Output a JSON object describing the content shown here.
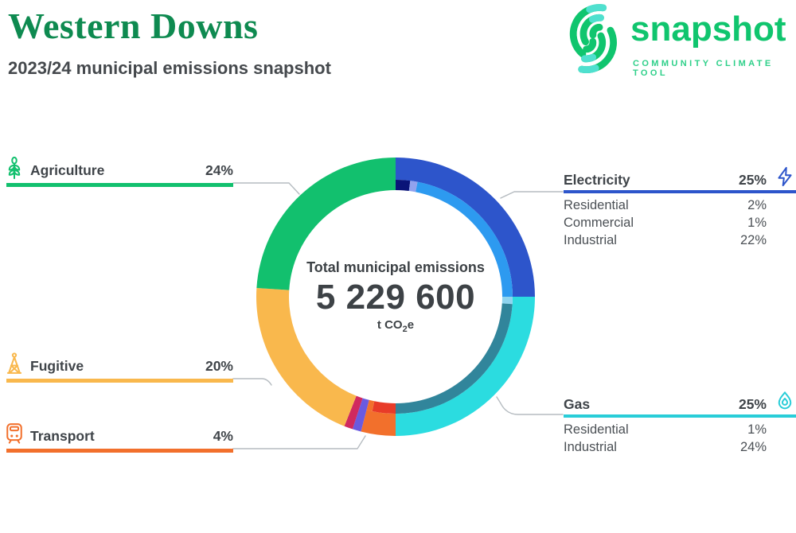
{
  "header": {
    "title": "Western Downs",
    "subtitle": "2023/24 municipal emissions snapshot",
    "logo": {
      "name": "snapshot",
      "tagline": "COMMUNITY CLIMATE TOOL",
      "green": "#10c56e",
      "teal": "#4fe0cf"
    }
  },
  "donut": {
    "center_label": "Total municipal emissions",
    "total": "5 229 600",
    "unit_prefix": "t CO",
    "unit_sub": "2",
    "unit_suffix": "e"
  },
  "chart_data": {
    "type": "pie",
    "variant": "donut-with-subring",
    "title": "Total municipal emissions",
    "total_label": "5 229 600 t CO2e",
    "start_angle_deg": 0,
    "direction": "clockwise",
    "segments": [
      {
        "label": "Electricity",
        "pct": 25,
        "color": "#2d55cb",
        "children": [
          {
            "label": "Residential",
            "pct": 2,
            "color": "#0a1478"
          },
          {
            "label": "Commercial",
            "pct": 1,
            "color": "#91a2ee"
          },
          {
            "label": "Industrial",
            "pct": 22,
            "color": "#2d9af0"
          }
        ]
      },
      {
        "label": "Gas",
        "pct": 25,
        "color": "#2bdce0",
        "children": [
          {
            "label": "Residential",
            "pct": 1,
            "color": "#8fd4ef"
          },
          {
            "label": "Industrial",
            "pct": 24,
            "color": "#31859b"
          }
        ]
      },
      {
        "label": "Transport",
        "pct": 4,
        "color": "#f2702c",
        "children": [
          {
            "label": "",
            "pct": 3.2,
            "color": "#e83b28"
          },
          {
            "label": "",
            "pct": 0.8,
            "color": "#f2702c"
          }
        ]
      },
      {
        "label": "",
        "pct": 1,
        "color": "#6a5ae0"
      },
      {
        "label": "",
        "pct": 1,
        "color": "#d0295f"
      },
      {
        "label": "Fugitive",
        "pct": 20,
        "color": "#f9b84d"
      },
      {
        "label": "Agriculture",
        "pct": 24,
        "color": "#12c06e"
      }
    ]
  },
  "labels": {
    "left": [
      {
        "label": "Agriculture",
        "value": "24%",
        "color": "#12c06e",
        "icon": "wheat-icon"
      },
      {
        "label": "Fugitive",
        "value": "20%",
        "color": "#f9b84d",
        "icon": "derrick-icon"
      },
      {
        "label": "Transport",
        "value": "4%",
        "color": "#f2702c",
        "icon": "train-icon"
      }
    ],
    "right": [
      {
        "label": "Electricity",
        "value": "25%",
        "color": "#2d55cb",
        "icon": "bolt-icon",
        "rows": [
          {
            "label": "Residential",
            "value": "2%"
          },
          {
            "label": "Commercial",
            "value": "1%"
          },
          {
            "label": "Industrial",
            "value": "22%"
          }
        ]
      },
      {
        "label": "Gas",
        "value": "25%",
        "color": "#29cdd8",
        "icon": "flame-icon",
        "rows": [
          {
            "label": "Residential",
            "value": "1%"
          },
          {
            "label": "Industrial",
            "value": "24%"
          }
        ]
      }
    ]
  }
}
